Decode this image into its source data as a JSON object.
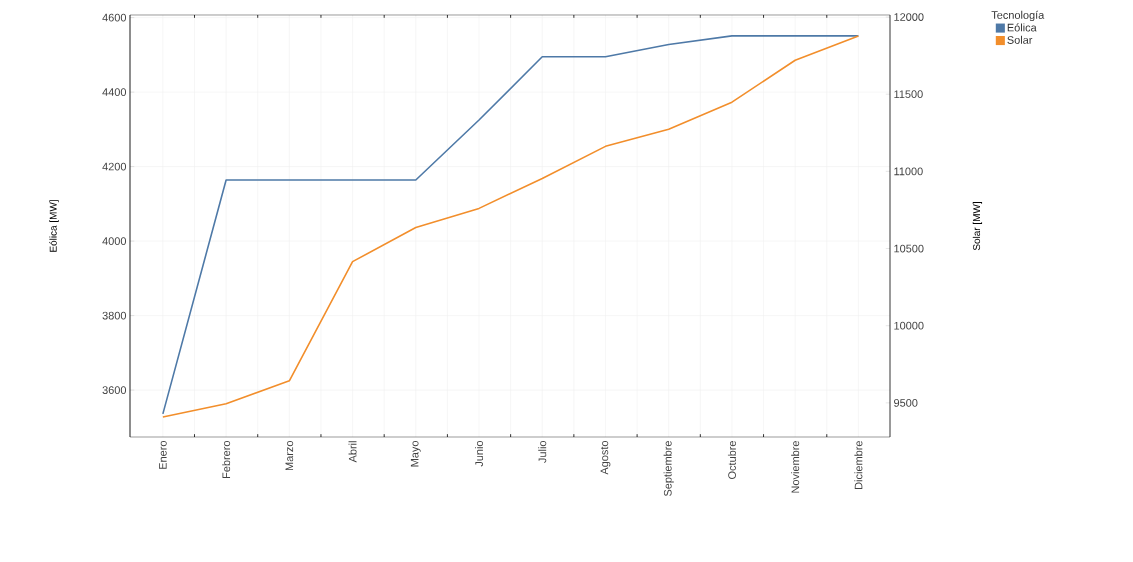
{
  "chart_data": {
    "type": "line",
    "categories": [
      "Enero",
      "Febrero",
      "Marzo",
      "Abril",
      "Mayo",
      "Junio",
      "Julio",
      "Agosto",
      "Septiembre",
      "Octubre",
      "Noviembre",
      "Diciembre"
    ],
    "series": [
      {
        "name": "Eólica",
        "color": "#4e79a7",
        "values": [
          3536,
          4164,
          4164,
          4164,
          4164,
          4325,
          4495,
          4495,
          4528,
          4551,
          4551,
          4551
        ]
      },
      {
        "name": "Solar",
        "color": "#f28e2b",
        "axis": "y2",
        "values": [
          9409,
          9495,
          9643,
          10415,
          10636,
          10760,
          10954,
          11162,
          11273,
          11448,
          11720,
          11877
        ]
      }
    ],
    "ylabel": "Eólica [MW]",
    "y2label": "Solar [MW]",
    "legend_title": "Tecnología",
    "ylim": [
      3474,
      4607
    ],
    "yticks": [
      3600,
      3800,
      4000,
      4200,
      4400,
      4600
    ],
    "y2lim": [
      9279,
      12013
    ],
    "y2ticks": [
      9500,
      10000,
      10500,
      11000,
      11500,
      12000
    ],
    "grid": true,
    "legend": "top right",
    "marker": "none",
    "line_style": "solid"
  }
}
